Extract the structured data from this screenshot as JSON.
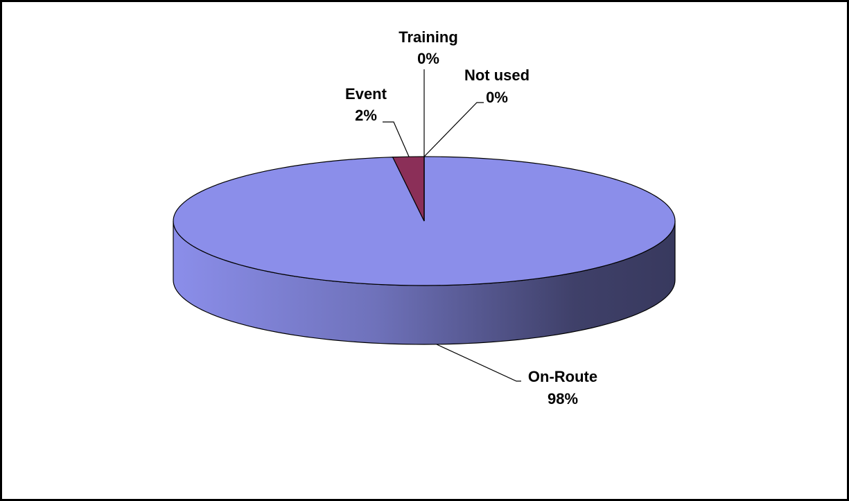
{
  "chart_data": {
    "type": "pie3d",
    "categories": [
      "On-Route",
      "Event",
      "Training",
      "Not used"
    ],
    "values": [
      98,
      2,
      0,
      0
    ],
    "value_labels": [
      "98%",
      "2%",
      "0%",
      "0%"
    ],
    "colors": [
      "#8b8eea",
      "#8b2f58",
      "#ffffcc",
      "#99ccff"
    ]
  }
}
